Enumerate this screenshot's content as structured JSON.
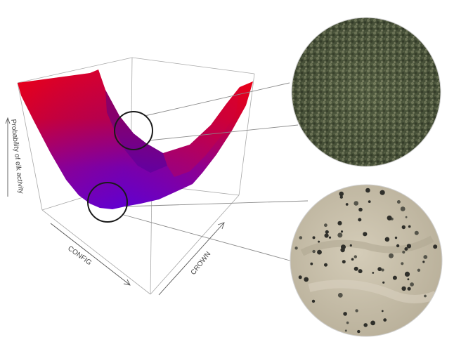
{
  "axes": {
    "z_label": "Probability of elk activity",
    "x_label": "CONFIG",
    "y_label": "CROWN"
  },
  "colors": {
    "surface_high": "#e0001b",
    "surface_low": "#6a00d8",
    "box_lines": "#a8a8a8",
    "callout_circle": "#1a1a1a",
    "dense_canopy": "#4f5a3c",
    "sparse_ground": "#c7bea9"
  },
  "insets": [
    {
      "name": "dense-canopy-aerial-photo"
    },
    {
      "name": "sparse-canopy-aerial-photo"
    }
  ]
}
